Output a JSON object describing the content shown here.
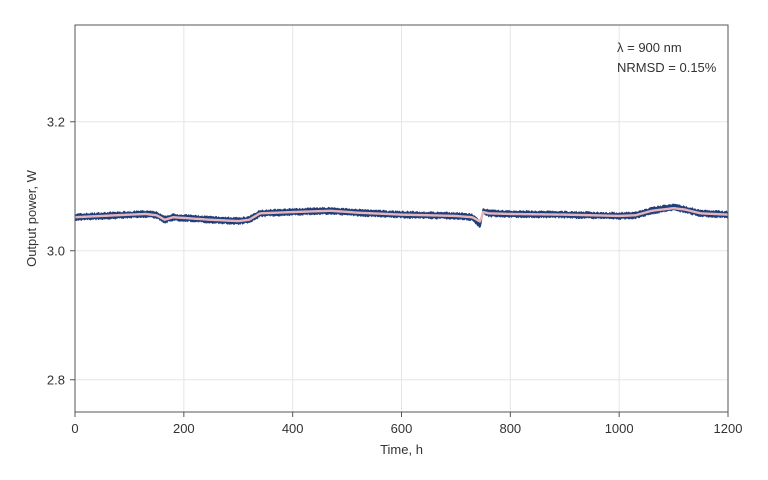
{
  "chart_data": {
    "type": "line",
    "xlabel": "Time, h",
    "ylabel": "Output power, W",
    "xlim": [
      0,
      1200
    ],
    "ylim": [
      2.75,
      3.35
    ],
    "xticks": [
      0,
      200,
      400,
      600,
      800,
      1000,
      1200
    ],
    "yticks": [
      2.8,
      3.0,
      3.2
    ],
    "xtick_labels": [
      "0",
      "200",
      "400",
      "600",
      "800",
      "1000",
      "1200"
    ],
    "ytick_labels": [
      "2.8",
      "3.0",
      "3.2"
    ],
    "grid": true,
    "annotations": [
      "λ = 900 nm",
      "NRMSD = 0.15%"
    ],
    "colors": {
      "raw": "#1f3f7a",
      "smoothed": "#e8b4bc",
      "grid": "#e6e6e6",
      "axis": "#555555"
    },
    "series": [
      {
        "role": "raw",
        "band_half_width": 0.006,
        "x": [
          0,
          50,
          100,
          130,
          150,
          165,
          180,
          250,
          300,
          320,
          340,
          400,
          470,
          520,
          600,
          700,
          730,
          745,
          750,
          760,
          800,
          900,
          1000,
          1030,
          1060,
          1100,
          1120,
          1150,
          1200
        ],
        "y": [
          3.052,
          3.054,
          3.056,
          3.057,
          3.055,
          3.048,
          3.052,
          3.048,
          3.046,
          3.048,
          3.058,
          3.06,
          3.062,
          3.059,
          3.056,
          3.054,
          3.052,
          3.04,
          3.062,
          3.058,
          3.057,
          3.056,
          3.054,
          3.055,
          3.062,
          3.068,
          3.064,
          3.058,
          3.056
        ]
      },
      {
        "role": "smoothed",
        "x": [
          0,
          50,
          100,
          130,
          150,
          165,
          180,
          250,
          300,
          320,
          340,
          400,
          470,
          520,
          600,
          700,
          730,
          745,
          750,
          760,
          800,
          900,
          1000,
          1030,
          1060,
          1100,
          1120,
          1150,
          1200
        ],
        "y": [
          3.052,
          3.054,
          3.056,
          3.057,
          3.055,
          3.048,
          3.052,
          3.048,
          3.046,
          3.048,
          3.058,
          3.06,
          3.062,
          3.059,
          3.056,
          3.054,
          3.052,
          3.045,
          3.06,
          3.058,
          3.057,
          3.056,
          3.054,
          3.055,
          3.062,
          3.066,
          3.064,
          3.058,
          3.056
        ]
      }
    ]
  }
}
